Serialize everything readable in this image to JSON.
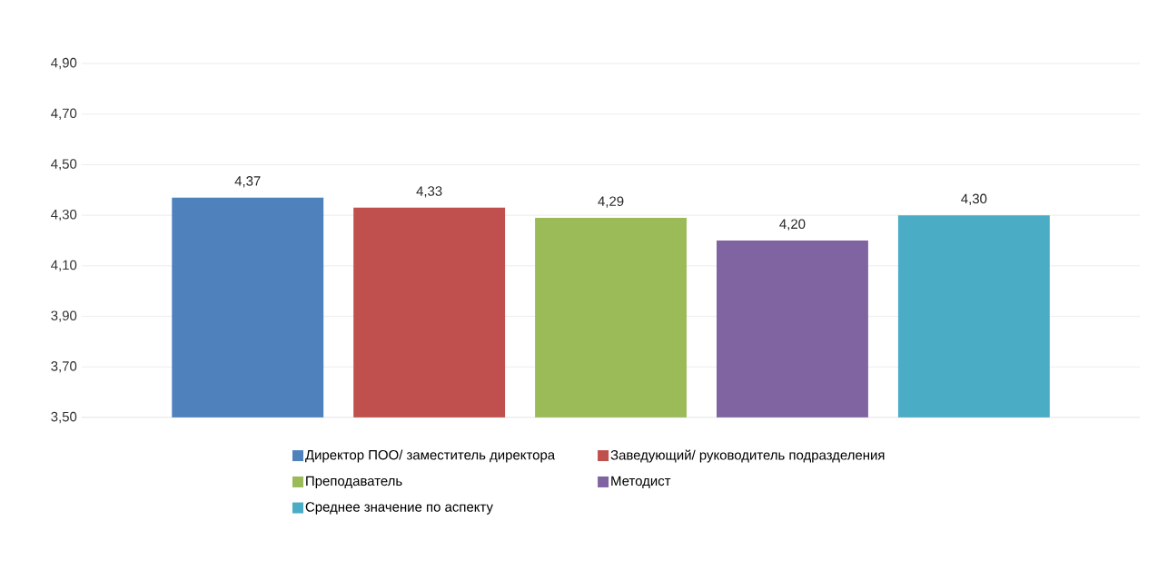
{
  "chart_data": {
    "type": "bar",
    "categories": [
      null
    ],
    "series": [
      {
        "name": "Директор ПОО/ заместитель директора",
        "color": "#4f81bd",
        "values": [
          4.37
        ],
        "value_labels": [
          "4,37"
        ]
      },
      {
        "name": "Заведующий/ руководитель подразделения",
        "color": "#c0504d",
        "values": [
          4.33
        ],
        "value_labels": [
          "4,33"
        ]
      },
      {
        "name": "Преподаватель",
        "color": "#9bbb59",
        "values": [
          4.29
        ],
        "value_labels": [
          "4,29"
        ]
      },
      {
        "name": "Методист",
        "color": "#8064a2",
        "values": [
          4.2
        ],
        "value_labels": [
          "4,20"
        ]
      },
      {
        "name": "Среднее значение по аспекту",
        "color": "#4bacc6",
        "values": [
          4.3
        ],
        "value_labels": [
          "4,30"
        ]
      }
    ],
    "ylim": [
      3.5,
      4.9
    ],
    "yticks": [
      {
        "value": 3.5,
        "label": "3,50"
      },
      {
        "value": 3.7,
        "label": "3,70"
      },
      {
        "value": 3.9,
        "label": "3,90"
      },
      {
        "value": 4.1,
        "label": "4,10"
      },
      {
        "value": 4.3,
        "label": "4,30"
      },
      {
        "value": 4.5,
        "label": "4,50"
      },
      {
        "value": 4.7,
        "label": "4,70"
      },
      {
        "value": 4.9,
        "label": "4,90"
      }
    ],
    "grid": "y",
    "legend": "bottom",
    "tick_labels": "y"
  }
}
